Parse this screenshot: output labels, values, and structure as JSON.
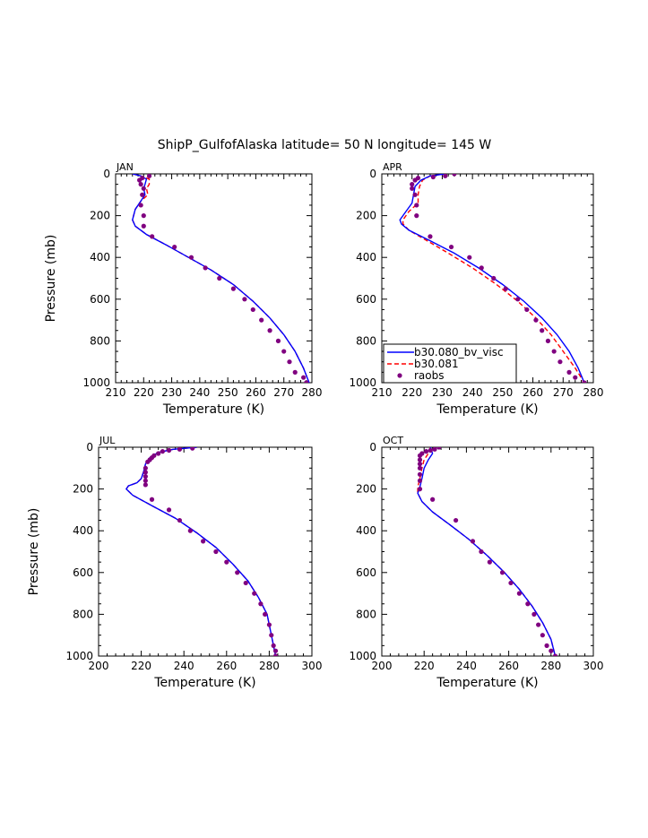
{
  "figure": {
    "title": "ShipP_GulfofAlaska  latitude= 50 N longitude= 145 W"
  },
  "legend": {
    "entries": [
      {
        "label": "b30.080_bv_visc",
        "color": "#0000ff",
        "style": "solid"
      },
      {
        "label": "b30.081",
        "color": "#ff0000",
        "style": "dashed"
      },
      {
        "label": "raobs",
        "color": "#800080",
        "style": "marker"
      }
    ]
  },
  "chart_data": [
    {
      "type": "line",
      "panel": "JAN",
      "xlabel": "Temperature (K)",
      "ylabel": "Pressure (mb)",
      "xlim": [
        210,
        280
      ],
      "xticks": [
        210,
        220,
        230,
        240,
        250,
        260,
        270,
        280
      ],
      "ylim": [
        1000,
        0
      ],
      "yticks": [
        0,
        200,
        400,
        600,
        800,
        1000
      ],
      "series": [
        {
          "name": "b30.080_bv_visc",
          "color": "#0000ff",
          "style": "solid",
          "x": [
            216,
            219,
            221,
            220.5,
            220,
            220.5,
            219,
            217,
            216,
            217,
            221,
            228,
            236,
            244,
            252,
            259,
            265,
            270,
            274,
            277,
            279
          ],
          "y": [
            0,
            10,
            25,
            50,
            70,
            100,
            130,
            170,
            220,
            250,
            290,
            340,
            400,
            460,
            530,
            610,
            690,
            770,
            850,
            930,
            1000
          ]
        },
        {
          "name": "b30.081",
          "color": "#ff0000",
          "style": "dashed",
          "x": [
            216,
            219,
            222,
            222,
            221,
            221.5,
            219,
            217,
            216,
            217,
            221,
            228,
            236,
            244,
            252,
            259,
            265,
            270,
            274,
            277,
            279
          ],
          "y": [
            0,
            10,
            25,
            50,
            70,
            100,
            130,
            170,
            220,
            250,
            290,
            340,
            400,
            460,
            530,
            610,
            690,
            770,
            850,
            930,
            1000
          ]
        },
        {
          "name": "raobs",
          "color": "#800080",
          "style": "marker",
          "x": [
            222,
            219.5,
            218.5,
            219,
            220,
            219.5,
            219,
            220,
            220,
            223,
            231,
            237,
            242,
            247,
            252,
            256,
            259,
            262,
            265,
            268,
            270,
            272,
            274,
            277,
            278
          ],
          "y": [
            10,
            20,
            30,
            50,
            70,
            100,
            150,
            200,
            250,
            300,
            350,
            400,
            450,
            500,
            550,
            600,
            650,
            700,
            750,
            800,
            850,
            900,
            950,
            975,
            1000
          ]
        }
      ]
    },
    {
      "type": "line",
      "panel": "APR",
      "xlabel": "Temperature (K)",
      "ylabel": "",
      "xlim": [
        210,
        280
      ],
      "xticks": [
        210,
        220,
        230,
        240,
        250,
        260,
        270,
        280
      ],
      "ylim": [
        1000,
        0
      ],
      "yticks": [
        0,
        200,
        400,
        600,
        800,
        1000
      ],
      "series": [
        {
          "name": "b30.080_bv_visc",
          "color": "#0000ff",
          "style": "solid",
          "x": [
            231,
            226,
            223,
            221,
            220.5,
            220,
            218,
            216,
            216.5,
            219,
            226,
            234,
            242,
            250,
            257,
            263,
            268,
            272,
            275,
            277
          ],
          "y": [
            0,
            10,
            30,
            60,
            100,
            140,
            180,
            220,
            240,
            270,
            320,
            380,
            450,
            530,
            610,
            690,
            770,
            850,
            930,
            1000
          ]
        },
        {
          "name": "b30.081",
          "color": "#ff0000",
          "style": "dashed",
          "x": [
            231,
            226,
            223.5,
            222.5,
            222,
            222,
            219,
            217,
            217,
            219,
            225,
            232,
            240,
            248,
            255,
            261,
            266,
            270,
            274,
            277
          ],
          "y": [
            0,
            10,
            30,
            60,
            100,
            140,
            180,
            220,
            240,
            270,
            320,
            380,
            450,
            530,
            610,
            690,
            770,
            850,
            930,
            1000
          ]
        },
        {
          "name": "raobs",
          "color": "#800080",
          "style": "marker",
          "x": [
            234,
            231,
            227,
            222,
            221,
            220,
            220,
            221,
            221.5,
            221.5,
            226,
            233,
            239,
            243,
            247,
            251,
            255,
            258,
            261,
            263,
            265,
            267,
            269,
            272,
            274,
            277
          ],
          "y": [
            0,
            10,
            15,
            20,
            30,
            50,
            70,
            100,
            150,
            200,
            300,
            350,
            400,
            450,
            500,
            550,
            600,
            650,
            700,
            750,
            800,
            850,
            900,
            950,
            975,
            1000
          ]
        }
      ]
    },
    {
      "type": "line",
      "panel": "JUL",
      "xlabel": "Temperature (K)",
      "ylabel": "Pressure (mb)",
      "xlim": [
        200,
        300
      ],
      "xticks": [
        200,
        220,
        240,
        260,
        280,
        300
      ],
      "ylim": [
        1000,
        0
      ],
      "yticks": [
        0,
        200,
        400,
        600,
        800,
        1000
      ],
      "series": [
        {
          "name": "b30.080_bv_visc",
          "color": "#0000ff",
          "style": "solid",
          "x": [
            246,
            235,
            228,
            224,
            222,
            221,
            220,
            218,
            214,
            213,
            216,
            225,
            236,
            246,
            255,
            263,
            270,
            275,
            279,
            281,
            283
          ],
          "y": [
            0,
            10,
            25,
            50,
            80,
            120,
            150,
            170,
            185,
            200,
            230,
            280,
            340,
            410,
            480,
            560,
            640,
            720,
            800,
            900,
            1000
          ]
        },
        {
          "name": "b30.081",
          "color": "#ff0000",
          "style": "dashed",
          "x": [
            246,
            235,
            228,
            224,
            222,
            221,
            220,
            218,
            214,
            213,
            216,
            225,
            236,
            246,
            255,
            263,
            270,
            275,
            279,
            281,
            283
          ],
          "y": [
            0,
            10,
            25,
            50,
            80,
            120,
            150,
            170,
            185,
            200,
            230,
            280,
            340,
            410,
            480,
            560,
            640,
            720,
            800,
            900,
            1000
          ]
        },
        {
          "name": "raobs",
          "color": "#800080",
          "style": "marker",
          "x": [
            244,
            238,
            233,
            230,
            228,
            226,
            225,
            224,
            223,
            222,
            222,
            222,
            222,
            222,
            225,
            233,
            238,
            243,
            249,
            255,
            260,
            265,
            269,
            273,
            276,
            278,
            280,
            281,
            282,
            283,
            283
          ],
          "y": [
            5,
            10,
            15,
            20,
            30,
            40,
            50,
            60,
            70,
            100,
            120,
            140,
            160,
            180,
            250,
            300,
            350,
            400,
            450,
            500,
            550,
            600,
            650,
            700,
            750,
            800,
            850,
            900,
            950,
            975,
            1000
          ]
        }
      ]
    },
    {
      "type": "line",
      "panel": "OCT",
      "xlabel": "Temperature (K)",
      "ylabel": "",
      "xlim": [
        200,
        300
      ],
      "xticks": [
        200,
        220,
        240,
        260,
        280,
        300
      ],
      "ylim": [
        1000,
        0
      ],
      "yticks": [
        0,
        200,
        400,
        600,
        800,
        1000
      ],
      "series": [
        {
          "name": "b30.080_bv_visc",
          "color": "#0000ff",
          "style": "solid",
          "x": [
            223,
            224,
            222,
            220,
            219,
            218,
            217,
            219,
            224,
            232,
            241,
            250,
            258,
            265,
            271,
            276,
            280,
            282
          ],
          "y": [
            0,
            30,
            60,
            100,
            150,
            190,
            220,
            260,
            310,
            370,
            440,
            520,
            600,
            680,
            760,
            840,
            920,
            1000
          ]
        },
        {
          "name": "b30.081",
          "color": "#ff0000",
          "style": "dashed",
          "x": [
            223,
            222,
            220,
            219,
            218,
            217,
            217,
            219,
            224,
            232,
            241,
            250,
            258,
            265,
            271,
            276,
            280,
            282
          ],
          "y": [
            0,
            30,
            60,
            100,
            150,
            190,
            220,
            260,
            310,
            370,
            440,
            520,
            600,
            680,
            760,
            840,
            920,
            1000
          ]
        },
        {
          "name": "raobs",
          "color": "#800080",
          "style": "marker",
          "x": [
            227,
            225,
            223,
            221,
            219,
            218,
            218,
            218,
            218,
            218,
            218,
            218,
            224,
            235,
            243,
            247,
            251,
            257,
            261,
            265,
            269,
            272,
            274,
            276,
            278,
            280,
            282
          ],
          "y": [
            0,
            10,
            15,
            20,
            30,
            40,
            60,
            80,
            100,
            130,
            160,
            200,
            250,
            350,
            450,
            500,
            550,
            600,
            650,
            700,
            750,
            800,
            850,
            900,
            950,
            975,
            1000
          ]
        }
      ]
    }
  ]
}
